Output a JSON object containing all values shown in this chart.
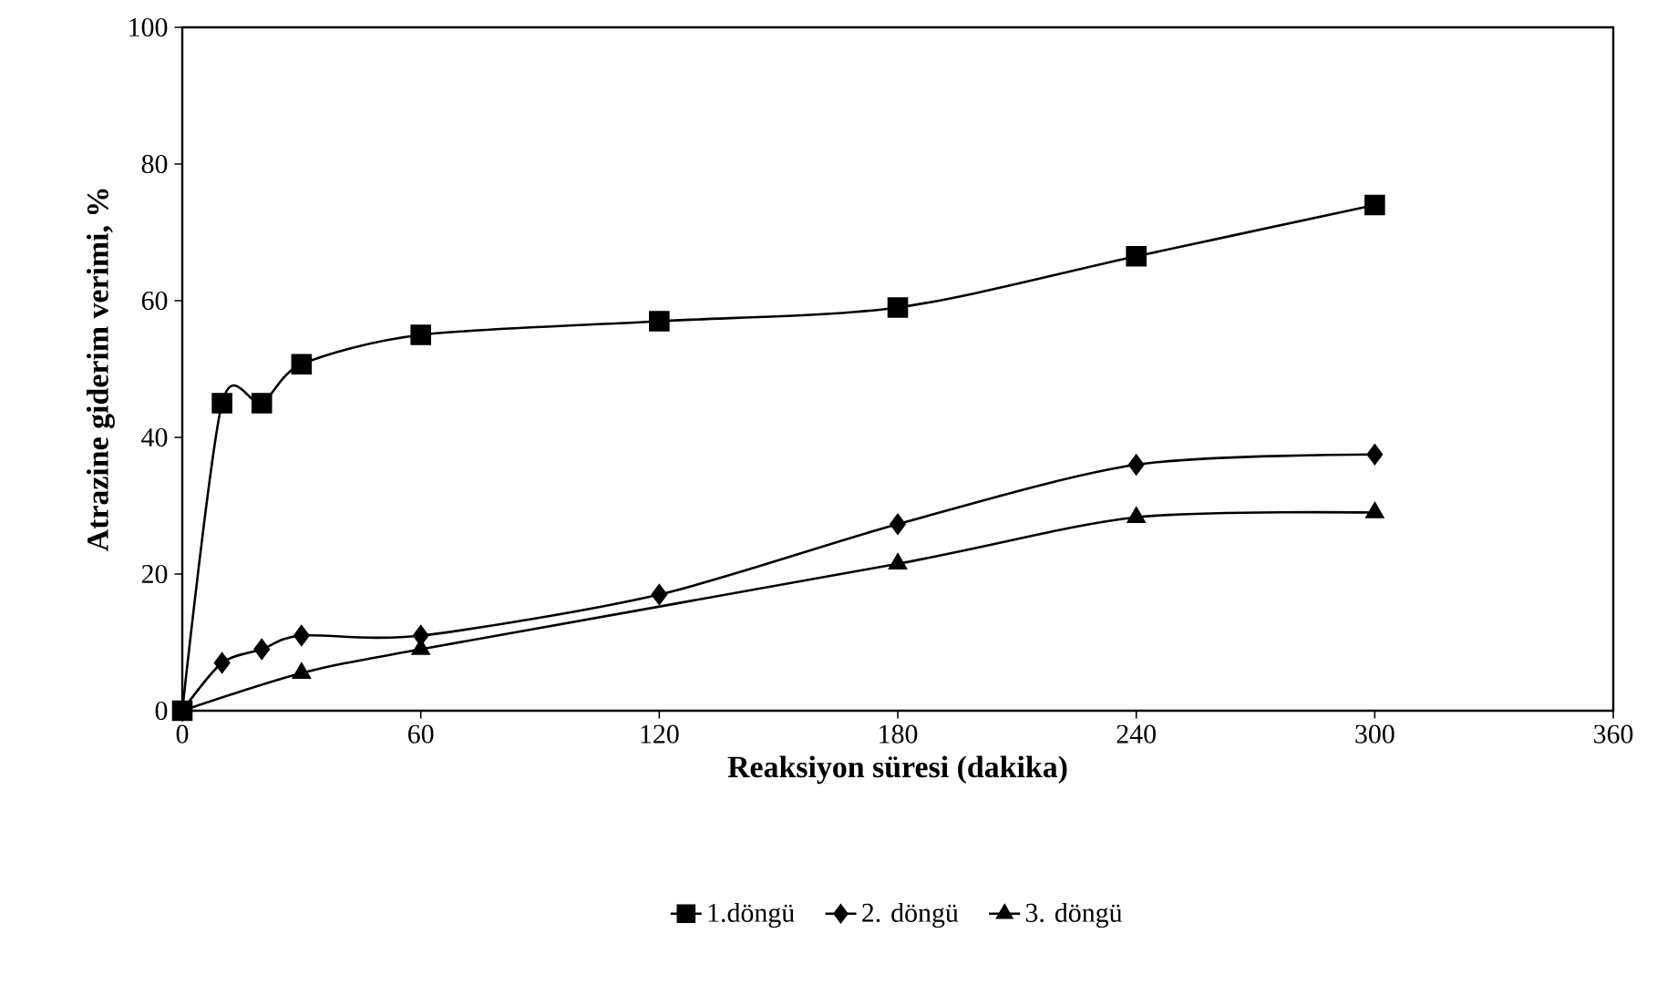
{
  "chart_data": {
    "type": "line",
    "xlabel": "Reaksiyon süresi (dakika)",
    "ylabel": "Atrazine giderim verimi, %",
    "xlim": [
      0,
      360
    ],
    "ylim": [
      0,
      100
    ],
    "xticks": [
      0,
      60,
      120,
      180,
      240,
      300,
      360
    ],
    "yticks": [
      0,
      20,
      40,
      60,
      80,
      100
    ],
    "grid": false,
    "legend": "bottom",
    "line_style": "solid",
    "series": [
      {
        "name": "1.döngü",
        "color": "#000000",
        "marker": "square",
        "x": [
          0,
          10,
          20,
          30,
          60,
          120,
          180,
          240,
          300
        ],
        "values": [
          0,
          45,
          45,
          50.7,
          55,
          57,
          59,
          66.5,
          74
        ]
      },
      {
        "name": "2. döngü",
        "color": "#000000",
        "marker": "diamond",
        "x": [
          0,
          10,
          20,
          30,
          60,
          120,
          180,
          240,
          300
        ],
        "values": [
          0,
          7,
          9,
          11,
          11,
          17,
          27.3,
          36,
          37.5
        ]
      },
      {
        "name": "3. döngü",
        "color": "#000000",
        "marker": "triangle",
        "x": [
          0,
          30,
          60,
          180,
          240,
          300
        ],
        "values": [
          0,
          5.5,
          9,
          21.5,
          28.3,
          29
        ]
      }
    ]
  }
}
